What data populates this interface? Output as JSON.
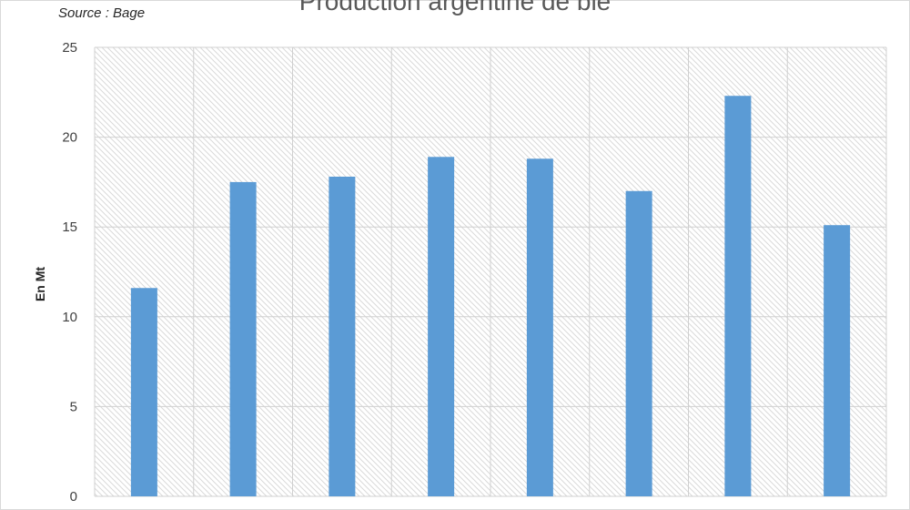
{
  "chart_data": {
    "type": "bar",
    "title": "Production argentine de blé",
    "source": "Source : Bage",
    "ylabel": "En Mt",
    "xlabel": "",
    "categories": [
      "",
      "",
      "",
      "",
      "",
      "",
      "",
      ""
    ],
    "values": [
      11.6,
      17.5,
      17.8,
      18.9,
      18.8,
      17.0,
      22.3,
      15.1
    ],
    "ylim": [
      0,
      25
    ],
    "yticks": [
      "0",
      "5",
      "10",
      "15",
      "20",
      "25"
    ],
    "grid": true,
    "legend": "none",
    "colors": {
      "bar": "#5B9BD5",
      "grid": "#d0d0d0",
      "hatch": "#d9d9d9"
    }
  }
}
